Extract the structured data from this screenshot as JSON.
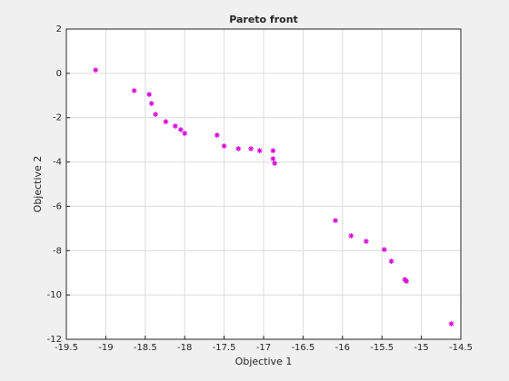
{
  "chart_data": {
    "type": "scatter",
    "title": "Pareto front",
    "x_label": "Objective 1",
    "y_label": "Objective 2",
    "x": [
      -19.13,
      -18.64,
      -18.45,
      -18.42,
      -18.37,
      -18.24,
      -18.12,
      -18.05,
      -18.0,
      -17.59,
      -17.5,
      -17.32,
      -17.16,
      -17.05,
      -16.88,
      -16.88,
      -16.86,
      -16.09,
      -15.89,
      -15.7,
      -15.47,
      -15.38,
      -15.21,
      -15.19,
      -14.62
    ],
    "values": [
      0.15,
      -0.78,
      -0.95,
      -1.36,
      -1.85,
      -2.18,
      -2.38,
      -2.54,
      -2.71,
      -2.79,
      -3.28,
      -3.4,
      -3.4,
      -3.49,
      -3.49,
      -3.85,
      -4.06,
      -6.64,
      -7.33,
      -7.58,
      -7.95,
      -8.48,
      -9.3,
      -9.38,
      -11.3
    ],
    "color": "#d400d4",
    "xlim": [
      -19.5,
      -14.5
    ],
    "xticks": [
      -19.5,
      -19,
      -18.5,
      -18,
      -17.5,
      -17,
      -16.5,
      -16,
      -15.5,
      -15,
      -14.5
    ],
    "ylim": [
      -12,
      2
    ],
    "yticks": [
      -12,
      -10,
      -8,
      -6,
      -4,
      -2,
      0,
      2
    ],
    "grid": true
  }
}
